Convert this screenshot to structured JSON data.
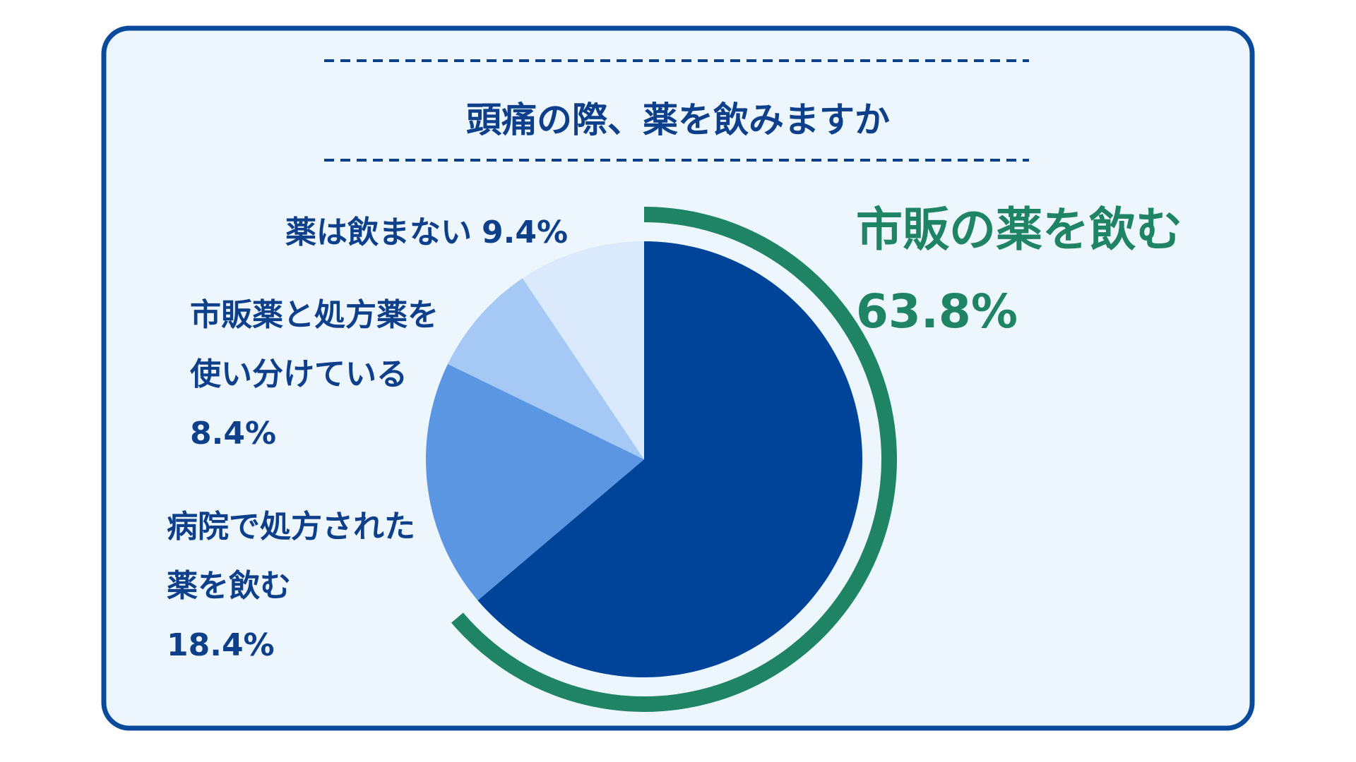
{
  "chart_data": {
    "type": "pie",
    "title": "頭痛の際、薬を飲みますか",
    "categories": [
      "市販の薬を飲む",
      "病院で処方された薬を飲む",
      "市販薬と処方薬を使い分けている",
      "薬は飲まない"
    ],
    "values": [
      63.8,
      18.4,
      8.4,
      9.4
    ],
    "value_labels": [
      "63.8%",
      "18.4%",
      "8.4%",
      "9.4%"
    ],
    "colors": [
      "#00449a",
      "#5b96e3",
      "#a6c8f5",
      "#dbe9fc"
    ],
    "highlight_color": "#1f8463"
  }
}
